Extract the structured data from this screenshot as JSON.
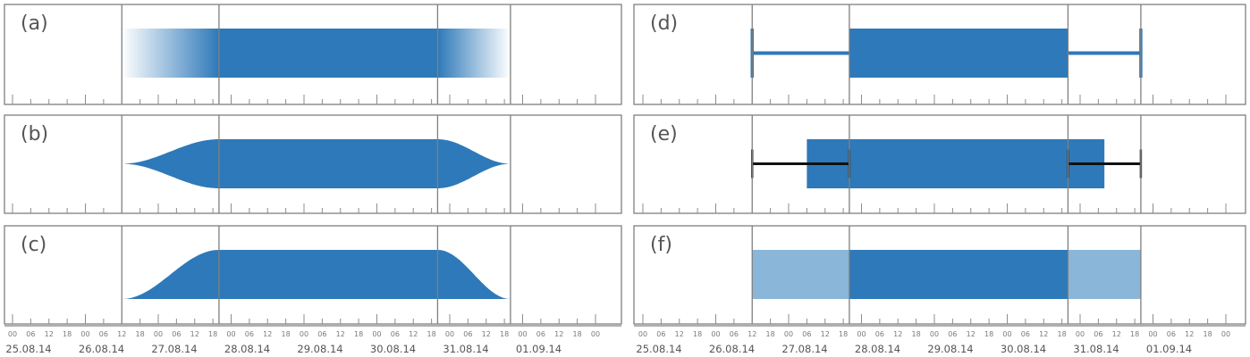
{
  "colors": {
    "primary": "#2e79b9",
    "light": "#8ab6d9",
    "whisker": "#111111",
    "frame": "#7f7f7f"
  },
  "panels": [
    {
      "label": "(a)",
      "style": "fuzzy-gradient",
      "column": "left"
    },
    {
      "label": "(b)",
      "style": "bell-shape",
      "column": "left"
    },
    {
      "label": "(c)",
      "style": "half-bell-shape",
      "column": "left"
    },
    {
      "label": "(d)",
      "style": "box-with-thin-whiskers",
      "column": "right"
    },
    {
      "label": "(e)",
      "style": "wide-box-with-black-whiskers",
      "column": "right"
    },
    {
      "label": "(f)",
      "style": "light-extended-box",
      "column": "right"
    }
  ],
  "time_axis": {
    "hour_labels": [
      "00",
      "06",
      "12",
      "18"
    ],
    "date_labels": [
      "25.08.14",
      "26.08.14",
      "27.08.14",
      "28.08.14",
      "29.08.14",
      "30.08.14",
      "31.08.14",
      "01.09.14"
    ]
  },
  "interval": {
    "earliest_start": "26.08.14 12:00",
    "certain_start": "27.08.14 20:00",
    "certain_end": "30.08.14 20:00",
    "latest_end": "31.08.14 20:00",
    "extended_start_e": "27.08.14 06:00",
    "extended_end_e": "31.08.14 08:00"
  }
}
